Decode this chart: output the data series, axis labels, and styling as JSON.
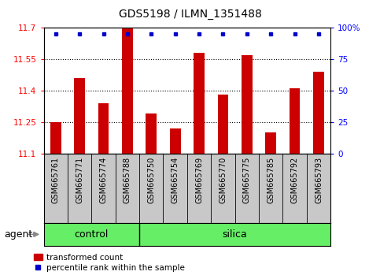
{
  "title": "GDS5198 / ILMN_1351488",
  "samples": [
    "GSM665761",
    "GSM665771",
    "GSM665774",
    "GSM665788",
    "GSM665750",
    "GSM665754",
    "GSM665769",
    "GSM665770",
    "GSM665775",
    "GSM665785",
    "GSM665792",
    "GSM665793"
  ],
  "transformed_count": [
    11.25,
    11.46,
    11.34,
    11.7,
    11.29,
    11.22,
    11.58,
    11.38,
    11.57,
    11.2,
    11.41,
    11.49
  ],
  "control_count": 4,
  "silica_count": 8,
  "ylim_left": [
    11.1,
    11.7
  ],
  "ylim_right": [
    0,
    100
  ],
  "yticks_left": [
    11.1,
    11.25,
    11.4,
    11.55,
    11.7
  ],
  "yticks_right": [
    0,
    25,
    50,
    75,
    100
  ],
  "bar_color": "#CC0000",
  "dot_color": "#0000CC",
  "bg_color": "#C8C8C8",
  "green_color": "#66EE66",
  "plot_bg": "#FFFFFF",
  "agent_label": "agent",
  "control_label": "control",
  "silica_label": "silica",
  "legend_bar_label": "transformed count",
  "legend_dot_label": "percentile rank within the sample",
  "title_fontsize": 10,
  "tick_fontsize": 7.5,
  "label_fontsize": 7,
  "group_fontsize": 9
}
